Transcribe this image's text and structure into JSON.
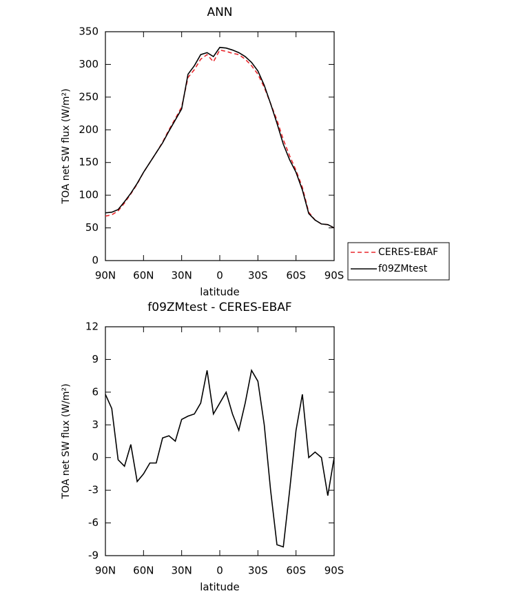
{
  "chart_data": [
    {
      "type": "line",
      "title": "ANN",
      "xlabel": "latitude",
      "ylabel": "TOA net SW flux (W/m²)",
      "x": [
        90,
        85,
        80,
        75,
        70,
        65,
        60,
        55,
        50,
        45,
        40,
        35,
        30,
        25,
        20,
        15,
        10,
        5,
        0,
        -5,
        -10,
        -15,
        -20,
        -25,
        -30,
        -35,
        -40,
        -45,
        -50,
        -55,
        -60,
        -65,
        -70,
        -75,
        -80,
        -85,
        -90
      ],
      "xlim": [
        90,
        -90
      ],
      "xticks": [
        {
          "value": 90,
          "label": "90N"
        },
        {
          "value": 60,
          "label": "60N"
        },
        {
          "value": 30,
          "label": "30N"
        },
        0,
        {
          "value": -30,
          "label": "30S"
        },
        {
          "value": -60,
          "label": "60S"
        },
        {
          "value": -90,
          "label": "90S"
        }
      ],
      "ylim": [
        0,
        350
      ],
      "yticks": [
        0,
        50,
        100,
        150,
        200,
        250,
        300,
        350
      ],
      "legend": "right",
      "series": [
        {
          "name": "CERES-EBAF",
          "color": "#e8262b",
          "linestyle": "dashed",
          "values": [
            68,
            70,
            76,
            88,
            102,
            117,
            135,
            150,
            165,
            181,
            200,
            217,
            235,
            280,
            292,
            308,
            315,
            304,
            322,
            320,
            317,
            315,
            308,
            298,
            285,
            265,
            240,
            215,
            185,
            160,
            138,
            112,
            74,
            62,
            56,
            55,
            50
          ]
        },
        {
          "name": "f09ZMtest",
          "color": "#000000",
          "linestyle": "solid",
          "values": [
            73,
            74,
            78,
            90,
            103,
            118,
            135,
            150,
            165,
            180,
            198,
            215,
            232,
            285,
            298,
            315,
            318,
            312,
            326,
            325,
            322,
            318,
            312,
            303,
            290,
            268,
            240,
            210,
            178,
            154,
            135,
            108,
            72,
            62,
            56,
            55,
            50
          ]
        }
      ]
    },
    {
      "type": "line",
      "title": "f09ZMtest - CERES-EBAF",
      "xlabel": "latitude",
      "ylabel": "TOA net SW flux (W/m²)",
      "x": [
        90,
        85,
        80,
        75,
        70,
        65,
        60,
        55,
        50,
        45,
        40,
        35,
        30,
        25,
        20,
        15,
        10,
        5,
        0,
        -5,
        -10,
        -15,
        -20,
        -25,
        -30,
        -35,
        -40,
        -45,
        -50,
        -55,
        -60,
        -65,
        -70,
        -75,
        -80,
        -85,
        -90
      ],
      "xlim": [
        90,
        -90
      ],
      "xticks": [
        {
          "value": 90,
          "label": "90N"
        },
        {
          "value": 60,
          "label": "60N"
        },
        {
          "value": 30,
          "label": "30N"
        },
        0,
        {
          "value": -30,
          "label": "30S"
        },
        {
          "value": -60,
          "label": "60S"
        },
        {
          "value": -90,
          "label": "90S"
        }
      ],
      "ylim": [
        -9,
        12
      ],
      "yticks": [
        -9,
        -6,
        -3,
        0,
        3,
        6,
        9,
        12
      ],
      "color": "#000000",
      "values": [
        5.8,
        4.5,
        -0.2,
        -0.8,
        1.2,
        -2.2,
        -1.5,
        -0.5,
        -0.5,
        1.8,
        2.0,
        1.5,
        3.5,
        3.8,
        4.0,
        5.0,
        8.0,
        4.0,
        5.0,
        6.0,
        4.0,
        2.5,
        5.0,
        8.0,
        7.0,
        3.0,
        -3.0,
        -8.0,
        -8.2,
        -3.0,
        2.5,
        5.8,
        0.0,
        0.5,
        0.0,
        -3.5,
        0.0
      ]
    }
  ]
}
